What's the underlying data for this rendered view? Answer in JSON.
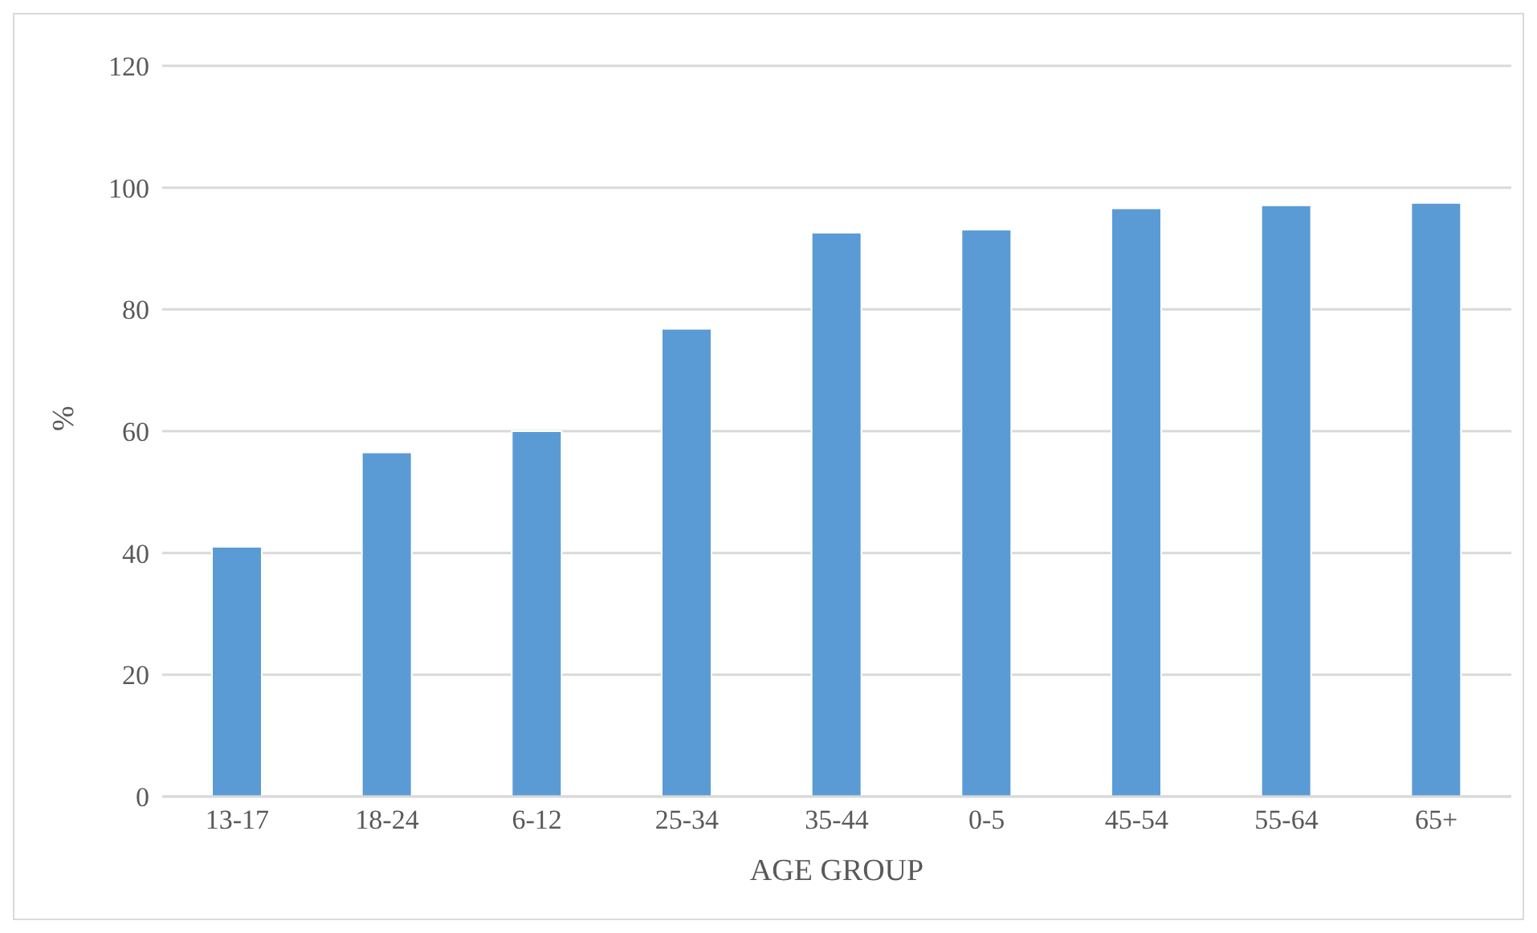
{
  "chart_data": {
    "type": "bar",
    "xlabel": "AGE GROUP",
    "ylabel": "%",
    "categories": [
      "13-17",
      "18-24",
      "6-12",
      "25-34",
      "35-44",
      "0-5",
      "45-54",
      "55-64",
      "65+"
    ],
    "values": [
      41,
      56.5,
      60,
      76.8,
      92.6,
      93.1,
      96.6,
      97.1,
      97.5
    ],
    "color": "#5b9bd5",
    "ylim": [
      0,
      120
    ],
    "yticks": [
      0,
      20,
      40,
      60,
      80,
      100,
      120
    ],
    "grid": "y"
  }
}
